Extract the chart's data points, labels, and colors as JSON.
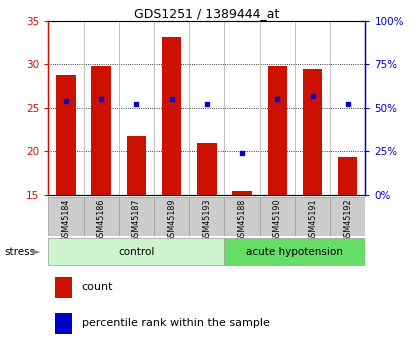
{
  "title": "GDS1251 / 1389444_at",
  "samples": [
    "GSM45184",
    "GSM45186",
    "GSM45187",
    "GSM45189",
    "GSM45193",
    "GSM45188",
    "GSM45190",
    "GSM45191",
    "GSM45192"
  ],
  "count_values": [
    28.8,
    29.8,
    21.8,
    33.1,
    21.0,
    15.5,
    29.8,
    29.5,
    19.4
  ],
  "percentile_values": [
    54,
    55,
    52,
    55,
    52,
    24,
    55,
    57,
    52
  ],
  "ylim_left": [
    15,
    35
  ],
  "ylim_right": [
    0,
    100
  ],
  "yticks_left": [
    15,
    20,
    25,
    30,
    35
  ],
  "yticks_right": [
    0,
    25,
    50,
    75,
    100
  ],
  "bar_color": "#cc1100",
  "dot_color": "#0000cc",
  "bar_width": 0.55,
  "plot_bg": "#ffffff",
  "stress_label": "stress",
  "legend_count": "count",
  "legend_percentile": "percentile rank within the sample",
  "ylabel_left_color": "#cc1100",
  "ylabel_right_color": "#0000cc",
  "control_color": "#ccf5cc",
  "acute_color": "#66dd66",
  "tick_bg": "#cccccc",
  "group_spans": [
    [
      0,
      4,
      "control"
    ],
    [
      5,
      8,
      "acute hypotension"
    ]
  ]
}
